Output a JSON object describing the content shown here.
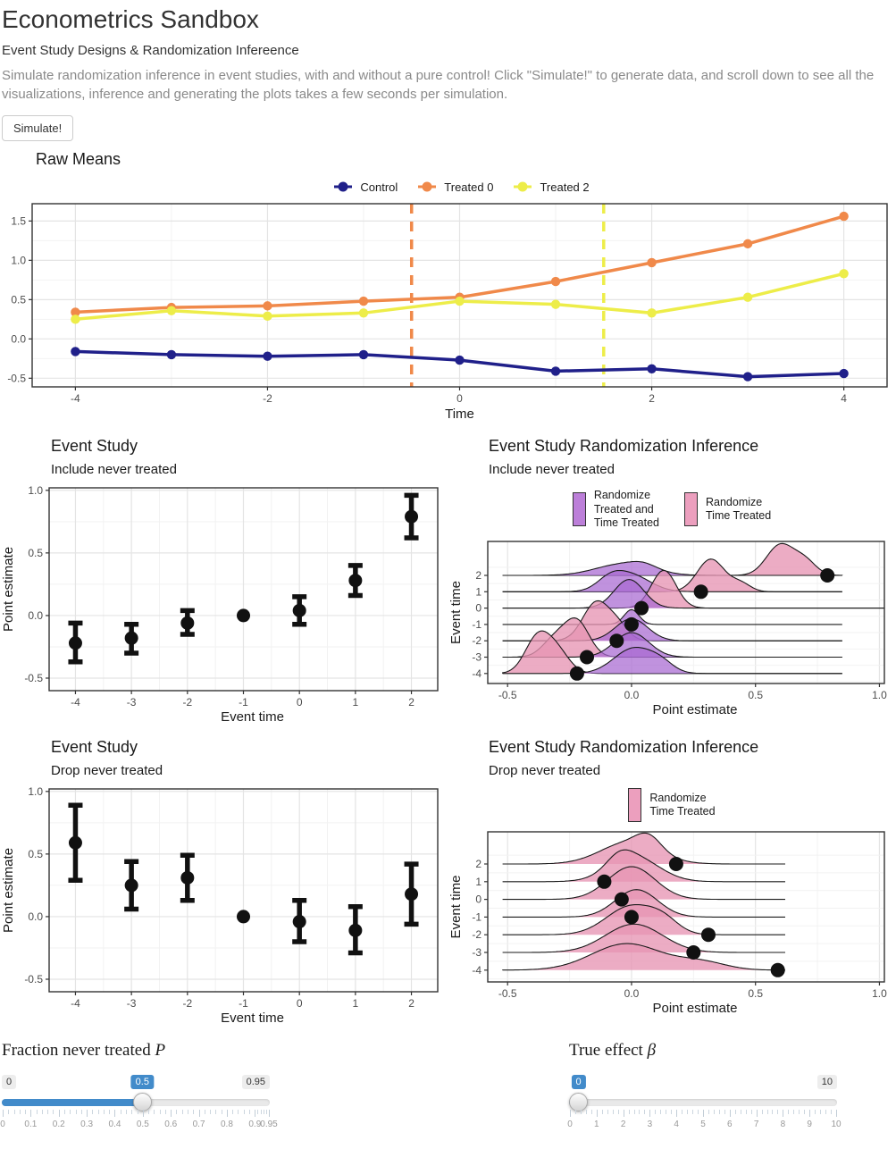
{
  "header": {
    "title": "Econometrics Sandbox",
    "subtitle": "Event Study Designs & Randomization Infereence",
    "description": "Simulate randomization inference in event studies, with and without a pure control! Click \"Simulate!\" to generate data, and scroll down to see all the visualizations, inference and generating the plots takes a few seconds per simulation.",
    "simulate_label": "Simulate!"
  },
  "chart_data": [
    {
      "type": "line",
      "title": "Raw Means",
      "xlabel": "Time",
      "x": [
        -4,
        -3,
        -2,
        -1,
        0,
        1,
        2,
        3,
        4
      ],
      "series": [
        {
          "name": "Control",
          "color": "#20208A",
          "values": [
            -0.16,
            -0.2,
            -0.22,
            -0.2,
            -0.27,
            -0.41,
            -0.38,
            -0.48,
            -0.44
          ]
        },
        {
          "name": "Treated 0",
          "color": "#F0894A",
          "values": [
            0.34,
            0.4,
            0.42,
            0.48,
            0.53,
            0.73,
            0.97,
            1.21,
            1.56
          ]
        },
        {
          "name": "Treated 2",
          "color": "#EDED49",
          "values": [
            0.25,
            0.36,
            0.29,
            0.33,
            0.48,
            0.44,
            0.33,
            0.53,
            0.83
          ]
        }
      ],
      "vlines": [
        {
          "x": -0.5,
          "color": "#F0894A",
          "style": "dashed"
        },
        {
          "x": 1.5,
          "color": "#EDED49",
          "style": "dashed"
        }
      ],
      "xticks": [
        -4,
        -2,
        0,
        2,
        4
      ],
      "xtick_labels": [
        "-4",
        "-2",
        "0",
        "2",
        "4"
      ],
      "yticks": [
        -0.5,
        0,
        0.5,
        1,
        1.5
      ],
      "ytick_labels": [
        "-0.5",
        "0.0",
        "0.5",
        "1.0",
        "1.5"
      ],
      "ylim": [
        -0.61,
        1.72
      ]
    },
    {
      "type": "errorbar",
      "title": "Event Study",
      "subtitle": "Include never treated",
      "xlabel": "Event time",
      "ylabel": "Point estimate",
      "x": [
        -4,
        -3,
        -2,
        -1,
        0,
        1,
        2
      ],
      "estimate": [
        -0.22,
        -0.18,
        -0.06,
        0,
        0.04,
        0.28,
        0.79
      ],
      "lower": [
        -0.37,
        -0.3,
        -0.15,
        null,
        -0.07,
        0.16,
        0.62
      ],
      "upper": [
        -0.06,
        -0.07,
        0.04,
        null,
        0.15,
        0.4,
        0.96
      ],
      "yticks": [
        -0.5,
        0,
        0.5,
        1
      ],
      "ytick_labels": [
        "-0.5",
        "0.0",
        "0.5",
        "1.0"
      ],
      "ylim": [
        -0.6,
        1.02
      ]
    },
    {
      "type": "ridgeline",
      "title": "Event Study Randomization Inference",
      "subtitle": "Include never treated",
      "xlabel": "Point estimate",
      "ylabel": "Event time",
      "colors": {
        "purple": "#A768D1",
        "pink": "#E795B3"
      },
      "legend": [
        {
          "lines": [
            "Randomize",
            "Treated and",
            "Time Treated"
          ],
          "color": "#BC7FD9"
        },
        {
          "lines": [
            "Randomize",
            "Time Treated"
          ],
          "color": "#EC9FBE"
        }
      ],
      "xticks": [
        -0.5,
        0,
        0.5,
        1
      ],
      "xtick_labels": [
        "-0.5",
        "0.0",
        "0.5",
        "1.0"
      ],
      "base_start": -0.52,
      "base_end": 0.85,
      "rows": [
        {
          "t": 2,
          "dot": 0.79,
          "purple": {
            "h": 0.85,
            "modes": [
              {
                "mu": -0.03,
                "sd": 0.11,
                "w": 1
              },
              {
                "mu": 0.05,
                "sd": 0.05,
                "w": 0.35
              }
            ]
          },
          "pink": {
            "h": 1.95,
            "modes": [
              {
                "mu": 0.6,
                "sd": 0.055,
                "w": 1
              },
              {
                "mu": 0.7,
                "sd": 0.045,
                "w": 0.45
              }
            ]
          }
        },
        {
          "t": 1,
          "dot": 0.28,
          "purple": {
            "h": 1.3,
            "modes": [
              {
                "mu": -0.01,
                "sd": 0.08,
                "w": 1
              },
              {
                "mu": -0.09,
                "sd": 0.05,
                "w": 0.45
              }
            ]
          },
          "pink": {
            "h": 2.0,
            "modes": [
              {
                "mu": 0.32,
                "sd": 0.055,
                "w": 1
              },
              {
                "mu": 0.44,
                "sd": 0.04,
                "w": 0.25
              }
            ]
          }
        },
        {
          "t": 0,
          "dot": 0.04,
          "base_end": 1.02,
          "purple": {
            "h": 1.75,
            "modes": [
              {
                "mu": -0.01,
                "sd": 0.06,
                "w": 1
              }
            ]
          },
          "pink": {
            "h": 2.3,
            "modes": [
              {
                "mu": 0.13,
                "sd": 0.05,
                "w": 1
              }
            ]
          }
        },
        {
          "t": -1,
          "dot": 0,
          "purple": {
            "h": 0.9,
            "modes": [
              {
                "mu": 0,
                "sd": 0.03,
                "w": 1
              }
            ]
          },
          "pink": {
            "h": 0,
            "modes": []
          }
        },
        {
          "t": -2,
          "dot": -0.06,
          "purple": {
            "h": 1.35,
            "modes": [
              {
                "mu": 0,
                "sd": 0.065,
                "w": 1
              }
            ]
          },
          "pink": {
            "h": 2.45,
            "modes": [
              {
                "mu": -0.14,
                "sd": 0.055,
                "w": 1
              },
              {
                "mu": -0.05,
                "sd": 0.04,
                "w": 0.3
              }
            ]
          }
        },
        {
          "t": -3,
          "dot": -0.18,
          "purple": {
            "h": 1.5,
            "modes": [
              {
                "mu": 0,
                "sd": 0.07,
                "w": 1
              }
            ]
          },
          "pink": {
            "h": 2.4,
            "modes": [
              {
                "mu": -0.22,
                "sd": 0.05,
                "w": 1
              },
              {
                "mu": -0.31,
                "sd": 0.05,
                "w": 0.5
              }
            ]
          }
        },
        {
          "t": -4,
          "dot": -0.22,
          "purple": {
            "h": 1.6,
            "modes": [
              {
                "mu": 0.01,
                "sd": 0.08,
                "w": 1
              },
              {
                "mu": 0.12,
                "sd": 0.05,
                "w": 0.3
              }
            ]
          },
          "pink": {
            "h": 2.6,
            "modes": [
              {
                "mu": -0.38,
                "sd": 0.05,
                "w": 1
              },
              {
                "mu": -0.3,
                "sd": 0.05,
                "w": 0.6
              }
            ]
          }
        }
      ]
    },
    {
      "type": "errorbar",
      "title": "Event Study",
      "subtitle": "Drop never treated",
      "xlabel": "Event time",
      "ylabel": "Point estimate",
      "x": [
        -4,
        -3,
        -2,
        -1,
        0,
        1,
        2
      ],
      "estimate": [
        0.59,
        0.25,
        0.31,
        0,
        -0.04,
        -0.11,
        0.18
      ],
      "lower": [
        0.29,
        0.06,
        0.13,
        null,
        -0.2,
        -0.29,
        -0.06
      ],
      "upper": [
        0.89,
        0.44,
        0.49,
        null,
        0.13,
        0.08,
        0.42
      ],
      "yticks": [
        -0.5,
        0,
        0.5,
        1
      ],
      "ytick_labels": [
        "-0.5",
        "0.0",
        "0.5",
        "1.0"
      ],
      "ylim": [
        -0.6,
        1.02
      ]
    },
    {
      "type": "ridgeline",
      "title": "Event Study Randomization Inference",
      "subtitle": "Drop never treated",
      "xlabel": "Point estimate",
      "ylabel": "Event time",
      "colors": {
        "purple": "#A768D1",
        "pink": "#E795B3"
      },
      "legend": [
        {
          "lines": [
            "Randomize",
            "Time Treated"
          ],
          "color": "#EC9FBE"
        }
      ],
      "xticks": [
        -0.5,
        0,
        0.5,
        1
      ],
      "xtick_labels": [
        "-0.5",
        "0.0",
        "0.5",
        "1.0"
      ],
      "base_start": -0.52,
      "base_end": 0.62,
      "rows": [
        {
          "t": 2,
          "dot": 0.18,
          "pink": {
            "h": 1.75,
            "modes": [
              {
                "mu": -0.01,
                "sd": 0.115,
                "w": 1
              },
              {
                "mu": 0.07,
                "sd": 0.05,
                "w": 0.6
              }
            ]
          }
        },
        {
          "t": 1,
          "dot": -0.11,
          "pink": {
            "h": 1.8,
            "modes": [
              {
                "mu": 0.01,
                "sd": 0.1,
                "w": 1
              },
              {
                "mu": -0.05,
                "sd": 0.05,
                "w": 0.4
              }
            ]
          }
        },
        {
          "t": 0,
          "dot": -0.04,
          "pink": {
            "h": 1.85,
            "modes": [
              {
                "mu": 0,
                "sd": 0.095,
                "w": 1
              }
            ]
          }
        },
        {
          "t": -1,
          "dot": 0,
          "pink": {
            "h": 1.55,
            "modes": [
              {
                "mu": 0.02,
                "sd": 0.085,
                "w": 1
              }
            ]
          }
        },
        {
          "t": -2,
          "dot": 0.31,
          "pink": {
            "h": 1.7,
            "modes": [
              {
                "mu": 0,
                "sd": 0.1,
                "w": 1
              },
              {
                "mu": 0.13,
                "sd": 0.06,
                "w": 0.35
              }
            ]
          }
        },
        {
          "t": -3,
          "dot": 0.25,
          "pink": {
            "h": 1.6,
            "modes": [
              {
                "mu": 0.01,
                "sd": 0.115,
                "w": 1
              }
            ]
          }
        },
        {
          "t": -4,
          "dot": 0.59,
          "pink": {
            "h": 1.5,
            "modes": [
              {
                "mu": -0.02,
                "sd": 0.14,
                "w": 1
              },
              {
                "mu": 0.28,
                "sd": 0.1,
                "w": 0.3
              }
            ]
          }
        }
      ]
    }
  ],
  "sliders": {
    "fraction": {
      "label_text": "Fraction never treated",
      "label_math": "P",
      "min": "0",
      "max": "0.95",
      "value": "0.5",
      "ticks": [
        "0",
        "0.1",
        "0.2",
        "0.3",
        "0.4",
        "0.5",
        "0.6",
        "0.7",
        "0.8",
        "0.9",
        "0.95"
      ]
    },
    "effect": {
      "label_text": "True effect",
      "label_math": "β",
      "min": "0",
      "max": "10",
      "value": "0",
      "ticks": [
        "0",
        "1",
        "2",
        "3",
        "4",
        "5",
        "6",
        "7",
        "8",
        "9",
        "10"
      ]
    }
  },
  "colors": {
    "accent_blue": "#428bca",
    "dot_black": "#111111"
  }
}
